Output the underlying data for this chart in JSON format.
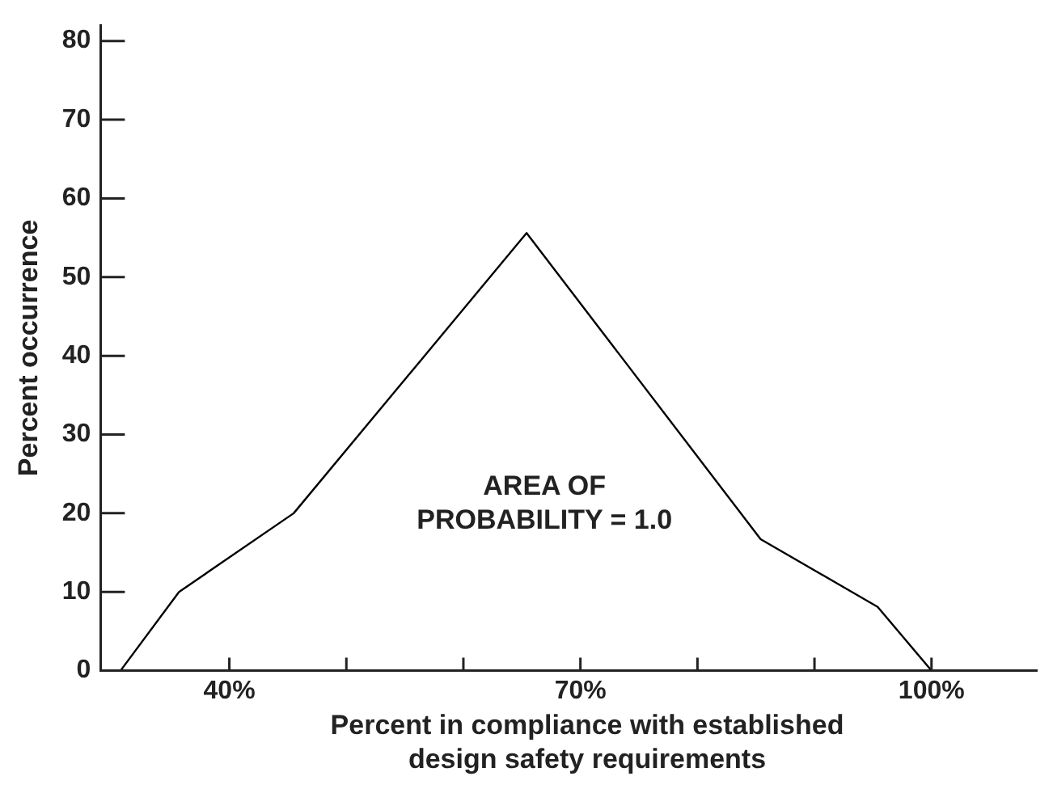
{
  "chart_data": {
    "type": "line",
    "xlabel": "Percent in compliance with established design safety requirements",
    "ylabel": "Percent occurrence",
    "x": [
      30.7,
      35.7,
      45.5,
      65.4,
      85.4,
      95.4,
      100
    ],
    "series": [
      {
        "color": "#000000",
        "values": [
          0,
          10,
          20,
          55.6,
          16.7,
          8.1,
          0
        ]
      }
    ],
    "xlim": [
      29,
      109
    ],
    "xticks": [
      {
        "value": 40,
        "label": "40%"
      },
      {
        "value": 50,
        "label": null
      },
      {
        "value": 60,
        "label": null
      },
      {
        "value": 70,
        "label": "70%"
      },
      {
        "value": 80,
        "label": null
      },
      {
        "value": 90,
        "label": null
      },
      {
        "value": 100,
        "label": "100%"
      }
    ],
    "ylim": [
      0,
      82
    ],
    "yticks": [
      0,
      10,
      20,
      30,
      40,
      50,
      60,
      70,
      80
    ],
    "annotations": [
      "AREA OF PROBABILITY = 1.0"
    ],
    "grid": false,
    "legend": false,
    "marker": "none",
    "line_style": "solid"
  }
}
